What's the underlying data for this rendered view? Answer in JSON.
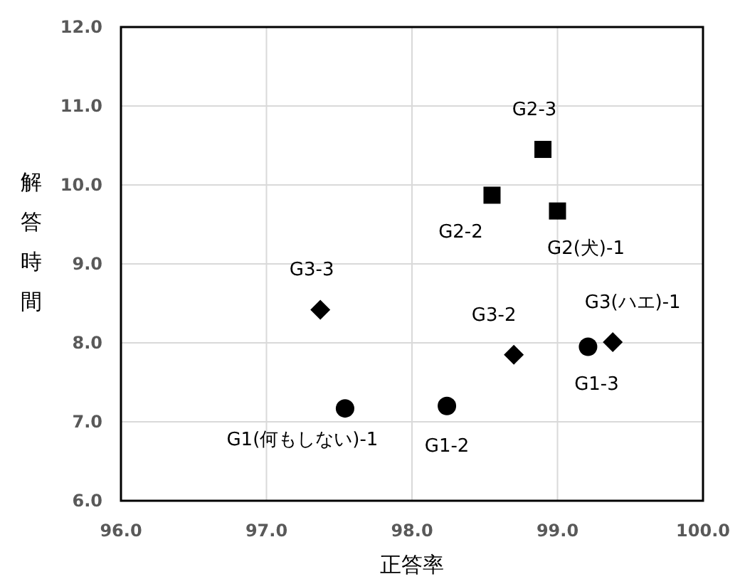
{
  "chart_data": {
    "type": "scatter",
    "xlabel": "正答率",
    "ylabel": "解答時間",
    "xlim": [
      96,
      100
    ],
    "ylim": [
      6,
      12
    ],
    "xticks": [
      {
        "value": 96,
        "label": "96.0"
      },
      {
        "value": 97,
        "label": "97.0"
      },
      {
        "value": 98,
        "label": "98.0"
      },
      {
        "value": 99,
        "label": "99.0"
      },
      {
        "value": 100,
        "label": "100.0"
      }
    ],
    "yticks": [
      {
        "value": 6,
        "label": "6.0"
      },
      {
        "value": 7,
        "label": "7.0"
      },
      {
        "value": 8,
        "label": "8.0"
      },
      {
        "value": 9,
        "label": "9.0"
      },
      {
        "value": 10,
        "label": "10.0"
      },
      {
        "value": 11,
        "label": "11.0"
      },
      {
        "value": 12,
        "label": "12.0"
      }
    ],
    "grid": true,
    "series": [
      {
        "color": "#000000",
        "marker": "circle",
        "x": [
          97.54,
          98.24,
          99.21
        ],
        "values": [
          7.17,
          7.2,
          7.95
        ]
      },
      {
        "color": "#000000",
        "marker": "square",
        "x": [
          99.0,
          98.55,
          98.9
        ],
        "values": [
          9.67,
          9.87,
          10.45
        ]
      },
      {
        "color": "#000000",
        "marker": "diamond",
        "x": [
          99.38,
          98.7,
          97.37
        ],
        "values": [
          8.01,
          7.85,
          8.42
        ]
      }
    ],
    "annotations": [
      {
        "text": "G1(何もしない)-1",
        "x": 97.54,
        "y": 7.17
      },
      {
        "text": "G1-2",
        "x": 98.24,
        "y": 7.2
      },
      {
        "text": "G1-3",
        "x": 99.21,
        "y": 7.95
      },
      {
        "text": "G2(犬)-1",
        "x": 99.0,
        "y": 9.67
      },
      {
        "text": "G2-2",
        "x": 98.55,
        "y": 9.87
      },
      {
        "text": "G2-3",
        "x": 98.9,
        "y": 10.45
      },
      {
        "text": "G3(ハエ)-1",
        "x": 99.38,
        "y": 8.01
      },
      {
        "text": "G3-2",
        "x": 98.7,
        "y": 7.85
      },
      {
        "text": "G3-3",
        "x": 97.37,
        "y": 8.42
      }
    ]
  }
}
